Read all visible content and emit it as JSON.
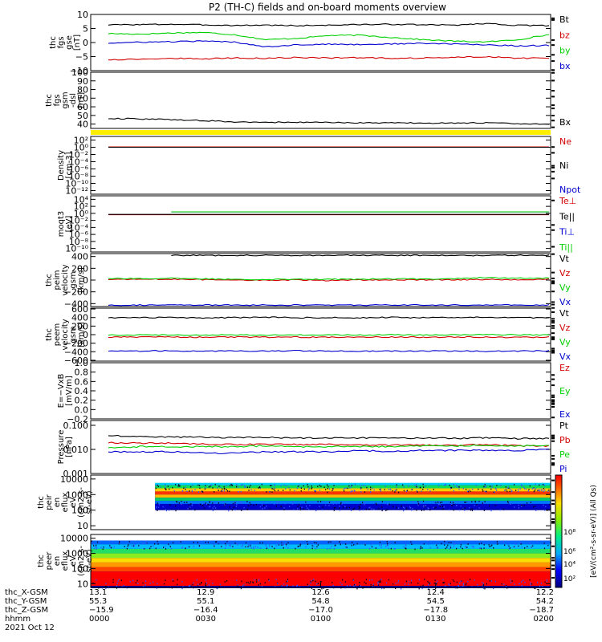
{
  "title": "P2 (TH-C) fields and on-board moments overview",
  "colors": {
    "black": "#000000",
    "red": "#d20000",
    "green": "#00d000",
    "blue": "#0000d0",
    "dark_green": "#006633",
    "yellow": "#ffee00"
  },
  "chart_data": [
    {
      "type": "line",
      "ylabel": [
        "thc",
        "fgs",
        "gse",
        "[nT]"
      ],
      "ylim": [
        -10,
        10
      ],
      "yticks": [
        "10",
        "5",
        "0",
        "−5",
        "−10"
      ],
      "yticks_values": [
        10,
        5,
        0,
        -5,
        -10
      ],
      "series": [
        {
          "name": "Bt",
          "color": "black",
          "values": [
            6.3,
            6.4,
            6.5,
            6.3,
            6.1,
            6.2,
            6.0,
            6.2,
            6.4,
            6.5,
            6.3,
            6.2,
            6.8,
            6.1,
            6.0
          ]
        },
        {
          "name": "bz",
          "color": "red",
          "values": [
            -6.1,
            -5.9,
            -5.6,
            -5.8,
            -5.5,
            -5.6,
            -5.3,
            -5.5,
            -5.4,
            -5.6,
            -5.5,
            -5.3,
            -5.0,
            -5.6,
            -5.5
          ]
        },
        {
          "name": "by",
          "color": "green",
          "values": [
            3.2,
            3.0,
            3.4,
            3.6,
            2.8,
            1.0,
            1.5,
            2.5,
            2.6,
            1.8,
            1.0,
            0.5,
            0.2,
            1.0,
            2.8
          ]
        },
        {
          "name": "bx",
          "color": "blue",
          "values": [
            -0.2,
            0.1,
            0.3,
            0.5,
            0.2,
            -1.5,
            -0.8,
            -0.6,
            -0.7,
            -0.5,
            -0.3,
            -0.5,
            -0.8,
            -1.2,
            -1.0
          ]
        }
      ]
    },
    {
      "type": "line",
      "ylabel": [
        "thc",
        "fgs",
        "gsm",
        "-dsl",
        "[nT]"
      ],
      "ylim": [
        35,
        100
      ],
      "yticks": [
        "100",
        "90",
        "80",
        "70",
        "60",
        "50",
        "40"
      ],
      "yticks_values": [
        100,
        90,
        80,
        70,
        60,
        50,
        40
      ],
      "series": [
        {
          "name": "Bx",
          "color": "black",
          "values": [
            46.5,
            46.0,
            45.2,
            44.0,
            42.5,
            42.0,
            42.1,
            41.8,
            41.5,
            41.4,
            41.2,
            41.0,
            41.5,
            40.5,
            39.5
          ]
        }
      ]
    },
    {
      "type": "line",
      "ylabel": [
        "Density",
        "[cm-3]"
      ],
      "yscale": "log",
      "yticks": [
        "10²",
        "10⁰",
        "10⁻²",
        "10⁻⁴",
        "10⁻⁶",
        "10⁻⁸",
        "10⁻¹⁰",
        "10⁻¹²"
      ],
      "yticks_values": [
        2,
        0,
        -2,
        -4,
        -6,
        -8,
        -10,
        -12
      ],
      "ylim": [
        -13,
        3
      ],
      "series": [
        {
          "name": "Ne",
          "color": "red",
          "values": [
            1.2,
            1.2,
            1.2,
            1.2,
            1.2,
            1.2,
            1.2,
            1.2,
            1.2,
            1.2,
            1.2,
            1.2,
            1.2,
            1.2,
            1.2
          ]
        },
        {
          "name": "Ni",
          "color": "black",
          "values": [
            1.0,
            1.0,
            1.0,
            1.0,
            1.0,
            1.0,
            1.0,
            1.0,
            1.0,
            1.0,
            1.0,
            1.0,
            1.0,
            1.0,
            1.0
          ]
        },
        {
          "name": "Npot",
          "color": "blue",
          "values": []
        }
      ]
    },
    {
      "type": "line",
      "ylabel": [
        "moqt3",
        "[eV]"
      ],
      "yscale": "log",
      "yticks": [
        "10⁴",
        "10²",
        "10⁰",
        "10⁻²",
        "10⁻⁴",
        "10⁻⁶",
        "10⁻⁸",
        "10⁻¹⁰"
      ],
      "yticks_values": [
        4,
        2,
        0,
        -2,
        -4,
        -6,
        -8,
        -10
      ],
      "ylim": [
        -11,
        5
      ],
      "series": [
        {
          "name": "Te⊥",
          "color": "red",
          "values": [
            0.4,
            0.4,
            0.4,
            0.4,
            0.4,
            0.4,
            0.4,
            0.4,
            0.4,
            0.4,
            0.4,
            0.4,
            0.4,
            0.4,
            0.4
          ]
        },
        {
          "name": "Te||",
          "color": "black",
          "values": [
            0.5,
            0.5,
            0.5,
            0.5,
            0.5,
            0.5,
            0.5,
            0.5,
            0.5,
            0.5,
            0.5,
            0.5,
            0.5,
            0.5,
            0.5
          ]
        },
        {
          "name": "Ti⊥",
          "color": "blue",
          "values": [
            null,
            null,
            2.6,
            2.6,
            2.6,
            2.6,
            2.6,
            2.6,
            2.6,
            2.6,
            2.6,
            2.6,
            2.6,
            2.6,
            2.6
          ]
        },
        {
          "name": "Ti||",
          "color": "green",
          "values": [
            null,
            null,
            2.7,
            2.7,
            2.7,
            2.7,
            2.7,
            2.7,
            2.7,
            2.7,
            2.7,
            2.7,
            2.7,
            2.7,
            2.7
          ]
        }
      ]
    },
    {
      "type": "line",
      "ylabel": [
        "thc",
        "peim",
        "velocity",
        "gsm",
        "[km/s]"
      ],
      "ylim": [
        -450,
        450
      ],
      "yticks": [
        "400",
        "200",
        "0",
        "−200",
        "−400"
      ],
      "yticks_values": [
        400,
        200,
        0,
        -200,
        -400
      ],
      "series": [
        {
          "name": "Vt",
          "color": "black",
          "values": [
            null,
            null,
            420,
            420,
            420,
            420,
            420,
            420,
            420,
            420,
            420,
            420,
            420,
            420,
            420
          ]
        },
        {
          "name": "Vz",
          "color": "red",
          "values": [
            10,
            15,
            12,
            8,
            5,
            -5,
            2,
            -8,
            0,
            5,
            3,
            2,
            10,
            8,
            12
          ]
        },
        {
          "name": "Vy",
          "color": "green",
          "values": [
            30,
            25,
            28,
            20,
            15,
            10,
            18,
            12,
            15,
            20,
            18,
            25,
            45,
            30,
            35
          ]
        },
        {
          "name": "Vx",
          "color": "blue",
          "values": [
            -425,
            -425,
            -425,
            -425,
            -425,
            -425,
            -425,
            -425,
            -425,
            -425,
            -425,
            -425,
            -425,
            -425,
            -425
          ]
        }
      ]
    },
    {
      "type": "line",
      "ylabel": [
        "thc",
        "peem",
        "velocity",
        "gsm",
        "[km/s]"
      ],
      "ylim": [
        -620,
        620
      ],
      "yticks": [
        "600",
        "400",
        "200",
        "0",
        "−200",
        "−400",
        "−600"
      ],
      "yticks_values": [
        600,
        400,
        200,
        0,
        -200,
        -400,
        -600
      ],
      "series": [
        {
          "name": "Vt",
          "color": "black",
          "values": [
            400,
            395,
            405,
            390,
            400,
            410,
            395,
            400,
            390,
            405,
            395,
            400,
            410,
            395,
            400
          ]
        },
        {
          "name": "Vz",
          "color": "red",
          "values": [
            -60,
            -55,
            -58,
            -62,
            -55,
            -60,
            -58,
            -60,
            -55,
            -58,
            -60,
            -56,
            -58,
            -60,
            -58
          ]
        },
        {
          "name": "Vy",
          "color": "green",
          "values": [
            -10,
            -5,
            -8,
            -12,
            -5,
            -10,
            -8,
            -6,
            -10,
            -5,
            -8,
            -6,
            5,
            -8,
            -5
          ]
        },
        {
          "name": "Vx",
          "color": "blue",
          "values": [
            -380,
            -385,
            -375,
            -390,
            -380,
            -385,
            -378,
            -382,
            -388,
            -380,
            -385,
            -380,
            -390,
            -385,
            -380
          ]
        }
      ]
    },
    {
      "type": "line",
      "ylabel": [
        "E=−VxB",
        "[mV/m]"
      ],
      "ylim": [
        -0.2,
        1.0
      ],
      "yticks": [
        "1.0",
        "0.8",
        "0.6",
        "0.4",
        "0.2",
        "0.0",
        "−0.2"
      ],
      "yticks_values": [
        1.0,
        0.8,
        0.6,
        0.4,
        0.2,
        0.0,
        -0.2
      ],
      "series": [
        {
          "name": "Ez",
          "color": "red",
          "values": []
        },
        {
          "name": "Ey",
          "color": "green",
          "values": []
        },
        {
          "name": "Ex",
          "color": "blue",
          "values": []
        }
      ]
    },
    {
      "type": "line",
      "ylabel": [
        "Pressure",
        "[nPa]"
      ],
      "yscale": "log",
      "yticks": [
        "0.100",
        "0.010",
        "0.001"
      ],
      "yticks_values": [
        -1,
        -2,
        -3
      ],
      "ylim": [
        -3,
        -0.8
      ],
      "series": [
        {
          "name": "Pt",
          "color": "black",
          "values": [
            0.038,
            0.035,
            0.033,
            0.032,
            0.031,
            0.031,
            0.03,
            0.03,
            0.03,
            0.03,
            0.029,
            0.029,
            0.03,
            0.028,
            0.029
          ]
        },
        {
          "name": "Pb",
          "color": "red",
          "values": [
            0.019,
            0.018,
            0.018,
            0.017,
            0.016,
            0.016,
            0.016,
            0.016,
            0.015,
            0.015,
            0.015,
            0.015,
            0.016,
            0.014,
            0.014
          ]
        },
        {
          "name": "Pe",
          "color": "green",
          "values": [
            0.012,
            0.013,
            0.013,
            0.013,
            0.013,
            0.014,
            0.013,
            0.013,
            0.013,
            0.013,
            0.014,
            0.014,
            0.015,
            0.014,
            0.015
          ]
        },
        {
          "name": "Pi",
          "color": "blue",
          "values": [
            0.008,
            0.008,
            0.008,
            0.007,
            0.007,
            0.008,
            0.008,
            0.008,
            0.009,
            0.008,
            0.009,
            0.009,
            0.009,
            0.009,
            0.01
          ]
        }
      ]
    },
    {
      "type": "heatmap",
      "ylabel": [
        "thc",
        "peir",
        "en",
        "eflux",
        "eV",
        "(cm2-s-",
        "sr-eV)"
      ],
      "yscale": "log",
      "yticks": [
        "10000",
        "1000",
        "100",
        "10"
      ],
      "yticks_values": [
        4,
        3,
        2,
        1
      ],
      "ylim": [
        0.75,
        4.25
      ],
      "colorbar": {
        "ticks": [
          "10⁸",
          "10⁶",
          "10⁴",
          "10²"
        ],
        "label": "[eV/(cm²-s-sr-eV)] (All Qs)"
      },
      "data_start_fraction": 0.14,
      "energy_range": [
        100,
        5000
      ],
      "bands": [
        {
          "from": 3.6,
          "to": 3.75,
          "color": "#00ccff"
        },
        {
          "from": 3.4,
          "to": 3.6,
          "color": "#11dd55"
        },
        {
          "from": 3.2,
          "to": 3.4,
          "color": "#ffcc00"
        },
        {
          "from": 3.0,
          "to": 3.2,
          "color": "#ff3300"
        },
        {
          "from": 2.8,
          "to": 3.0,
          "color": "#ffbb00"
        },
        {
          "from": 2.6,
          "to": 2.8,
          "color": "#00cc66"
        },
        {
          "from": 2.4,
          "to": 2.6,
          "color": "#0077ff"
        },
        {
          "from": 2.1,
          "to": 2.4,
          "color": "#0000cc"
        }
      ]
    },
    {
      "type": "heatmap",
      "ylabel": [
        "thc",
        "peer",
        "en",
        "eflux",
        "eV",
        "(cm2-s-",
        "sr-eV)"
      ],
      "yscale": "log",
      "yticks": [
        "10000",
        "1000",
        "100",
        "10"
      ],
      "yticks_values": [
        4,
        3,
        2,
        1
      ],
      "ylim": [
        0.75,
        4.25
      ],
      "colorbar": {
        "ticks": [
          "10⁸",
          "10⁶",
          "10⁴",
          "10²"
        ],
        "label": "[eV/(cm²-s-sr-eV)] (All Qs)"
      },
      "data_start_fraction": 0.0,
      "energy_range": [
        5,
        7000
      ],
      "bands": [
        {
          "from": 3.6,
          "to": 3.85,
          "color": "#0066ff"
        },
        {
          "from": 3.3,
          "to": 3.6,
          "color": "#00bbff"
        },
        {
          "from": 3.0,
          "to": 3.3,
          "color": "#22dd66"
        },
        {
          "from": 2.7,
          "to": 3.0,
          "color": "#88ee22"
        },
        {
          "from": 2.4,
          "to": 2.7,
          "color": "#ffdd00"
        },
        {
          "from": 2.1,
          "to": 2.4,
          "color": "#ff9900"
        },
        {
          "from": 1.8,
          "to": 2.1,
          "color": "#ff4400"
        },
        {
          "from": 0.85,
          "to": 1.8,
          "color": "#ff0000"
        }
      ]
    }
  ],
  "x_axis": {
    "row_labels": [
      "thc_X-GSM",
      "thc_Y-GSM",
      "thc_Z-GSM",
      "hhmm",
      "2021 Oct 12"
    ],
    "ticks": [
      {
        "values": [
          "13.1",
          "55.3",
          "−15.9",
          "0000"
        ]
      },
      {
        "values": [
          "12.9",
          "55.1",
          "−16.4",
          "0030"
        ]
      },
      {
        "values": [
          "12.6",
          "54.8",
          "−17.0",
          "0100"
        ]
      },
      {
        "values": [
          "12.4",
          "54.5",
          "−17.8",
          "0130"
        ]
      },
      {
        "values": [
          "12.2",
          "54.2",
          "−18.7",
          "0200"
        ]
      }
    ]
  },
  "colorbar": {
    "ticks": [
      "10⁸",
      "10⁶",
      "10⁴",
      "10²"
    ],
    "label": "[eV/(cm²-s-sr-eV)] (All Qs)"
  }
}
